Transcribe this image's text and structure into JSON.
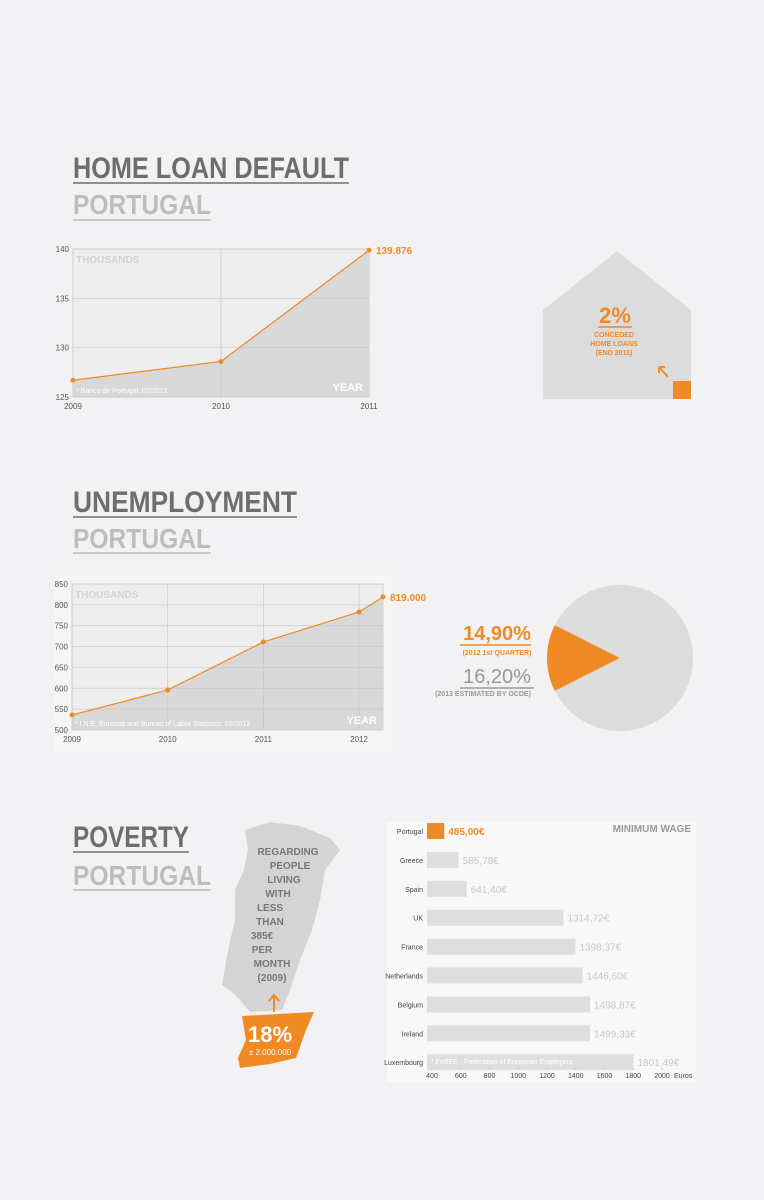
{
  "home_loan": {
    "title": "HOME LOAN DEFAULT",
    "subtitle": "PORTUGAL",
    "house": {
      "value": "2%",
      "lines": [
        "CONCEDED",
        "HOME LOANS",
        "(END 2011)"
      ]
    }
  },
  "unemployment": {
    "title": "UNEMPLOYMENT",
    "subtitle": "PORTUGAL"
  },
  "poverty": {
    "title": "POVERTY",
    "subtitle": "PORTUGAL",
    "map": {
      "lines": [
        "REGARDING",
        "PEOPLE",
        "LIVING",
        "WITH",
        "LESS",
        "THAN",
        "385€",
        "PER",
        "MONTH",
        "(2009)"
      ],
      "value": "18%",
      "count": "± 2.000.000"
    }
  },
  "chart_data": [
    {
      "type": "line",
      "categories": [
        "2009",
        "2010",
        "2011"
      ],
      "values": [
        126.7,
        128.6,
        139.876
      ],
      "value_labels": [
        null,
        null,
        "139.876"
      ],
      "ylim": [
        125,
        140
      ],
      "yticks": [
        125,
        130,
        135,
        140
      ],
      "grid": true,
      "color": "#f08a24",
      "y_label": "THOUSANDS",
      "x_label": "YEAR",
      "source": "* Banco de Portugal, 02/2012"
    },
    {
      "type": "line",
      "x": [
        2009,
        2010,
        2011,
        2012,
        2012.25
      ],
      "values": [
        536,
        596,
        711,
        783,
        819
      ],
      "value_labels": [
        null,
        null,
        null,
        null,
        "819.000"
      ],
      "xlim": [
        2009,
        2012.25
      ],
      "xticks": [
        2009,
        2010,
        2011,
        2012
      ],
      "ylim": [
        500,
        850
      ],
      "yticks": [
        500,
        550,
        600,
        650,
        700,
        750,
        800,
        850
      ],
      "grid": true,
      "color": "#f08a24",
      "y_label": "THOUSANDS",
      "x_label": "YEAR",
      "source": "* I.N.E, Eurostat and Bureau of Labor Statistics, 05/2012"
    },
    {
      "type": "pie",
      "values": [
        14.9,
        85.1
      ],
      "value_labels": [
        "14,90%",
        null
      ],
      "colors": [
        "#f08a24",
        "#dcdcdc"
      ],
      "value_note": "(2012 1st QUARTER)",
      "estimate_label": "16,20%",
      "estimate_note": "(2013 ESTIMATED BY OCDE)"
    },
    {
      "type": "hbar",
      "title": "MINIMUM WAGE",
      "categories": [
        "Portugal",
        "Greece",
        "Spain",
        "UK",
        "France",
        "Netherlands",
        "Belgium",
        "Ireland",
        "Luxembourg"
      ],
      "values": [
        485,
        585.78,
        641.4,
        1314.72,
        1398.37,
        1446.6,
        1498.87,
        1499.33,
        1801.49
      ],
      "value_labels": [
        "485,00€",
        "585,78€",
        "641,40€",
        "1314,72€",
        "1398,37€",
        "1446,60€",
        "1498,87€",
        "1499,33€",
        "1801,49€"
      ],
      "colors": [
        "#f08a24",
        "#dedede",
        "#dedede",
        "#dedede",
        "#dedede",
        "#dedede",
        "#dedede",
        "#dedede",
        "#dedede"
      ],
      "xlim": [
        365,
        2000
      ],
      "xticks": [
        400,
        600,
        800,
        1000,
        1200,
        1400,
        1600,
        1800,
        2000
      ],
      "x_label": "Euros",
      "source": "* FeBEE - Federation of European Employers"
    }
  ]
}
